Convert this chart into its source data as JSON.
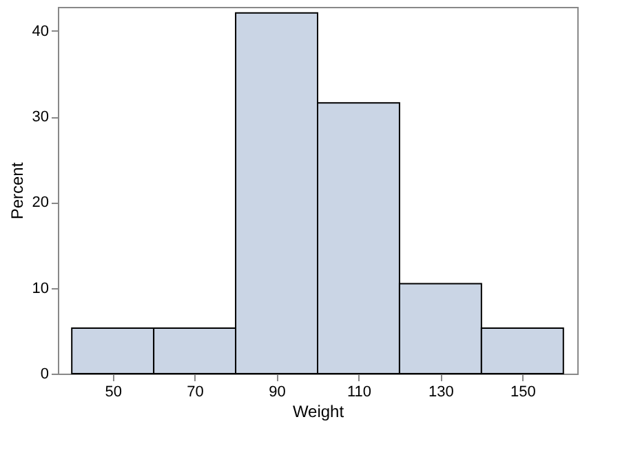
{
  "chart_data": {
    "type": "histogram",
    "xlabel": "Weight",
    "ylabel": "Percent",
    "bins": [
      40,
      60,
      80,
      100,
      120,
      140,
      160
    ],
    "values": [
      5.3,
      5.3,
      42.1,
      31.6,
      10.5,
      5.3
    ],
    "color": "#cad5e5",
    "xlim": [
      36.6,
      163.4
    ],
    "ylim": [
      0,
      42.8
    ],
    "xticks": [
      50,
      70,
      90,
      110,
      130,
      150
    ],
    "yticks": [
      0,
      10,
      20,
      30,
      40
    ],
    "grid": false
  }
}
